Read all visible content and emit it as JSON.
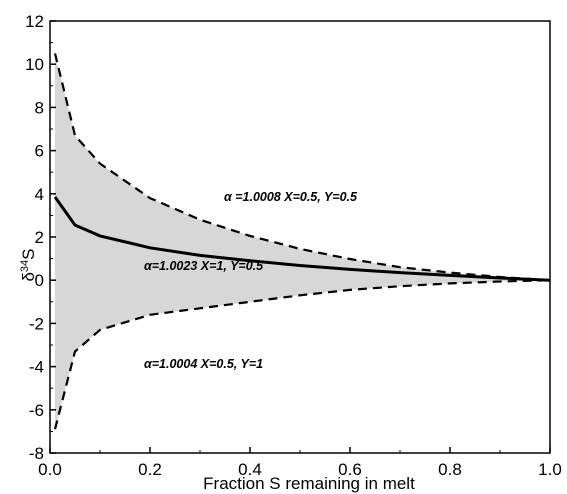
{
  "chart_data": {
    "type": "line",
    "xlabel": "Fraction S remaining in melt",
    "ylabel_base": "δ",
    "ylabel_sup": "34",
    "ylabel_tail": "S",
    "xlim": [
      0,
      1
    ],
    "ylim": [
      -8,
      12
    ],
    "x_ticks": [
      {
        "value": 0.0,
        "label": "0.0"
      },
      {
        "value": 0.2,
        "label": "0.2"
      },
      {
        "value": 0.4,
        "label": "0.4"
      },
      {
        "value": 0.6,
        "label": "0.6"
      },
      {
        "value": 0.8,
        "label": "0.8"
      },
      {
        "value": 1.0,
        "label": "1.0"
      }
    ],
    "y_ticks": [
      {
        "value": 12,
        "label": "12"
      },
      {
        "value": 10,
        "label": "10"
      },
      {
        "value": 8,
        "label": "8"
      },
      {
        "value": 6,
        "label": "6"
      },
      {
        "value": 4,
        "label": "4"
      },
      {
        "value": 2,
        "label": "2"
      },
      {
        "value": 0,
        "label": "0"
      },
      {
        "value": -2,
        "label": "-2"
      },
      {
        "value": -4,
        "label": "-4"
      },
      {
        "value": -6,
        "label": "-6"
      },
      {
        "value": -8,
        "label": "-8"
      }
    ],
    "grid": false,
    "shaded_region": "between upper and lower dashed curves",
    "series": [
      {
        "style": "dashed",
        "label": "α =1.0008 X=0.5, Y=0.5",
        "x": [
          0.01,
          0.05,
          0.1,
          0.2,
          0.3,
          0.4,
          0.5,
          0.6,
          0.7,
          0.8,
          0.9,
          1.0
        ],
        "y": [
          10.5,
          6.7,
          5.4,
          3.8,
          2.8,
          2.05,
          1.45,
          0.98,
          0.6,
          0.35,
          0.15,
          0.0
        ]
      },
      {
        "style": "solid",
        "label": "α=1.0023 X=1, Y=0.5",
        "x": [
          0.01,
          0.05,
          0.1,
          0.2,
          0.3,
          0.4,
          0.5,
          0.6,
          0.7,
          0.8,
          0.9,
          1.0
        ],
        "y": [
          3.85,
          2.55,
          2.05,
          1.5,
          1.15,
          0.9,
          0.68,
          0.5,
          0.35,
          0.22,
          0.1,
          0.0
        ]
      },
      {
        "style": "dashed",
        "label": "α=1.0004 X=0.5, Y=1",
        "x": [
          0.01,
          0.05,
          0.1,
          0.2,
          0.3,
          0.4,
          0.5,
          0.6,
          0.7,
          0.8,
          0.9,
          1.0
        ],
        "y": [
          -6.9,
          -3.3,
          -2.3,
          -1.6,
          -1.3,
          -1.0,
          -0.7,
          -0.45,
          -0.28,
          -0.15,
          -0.06,
          0.0
        ]
      }
    ]
  }
}
